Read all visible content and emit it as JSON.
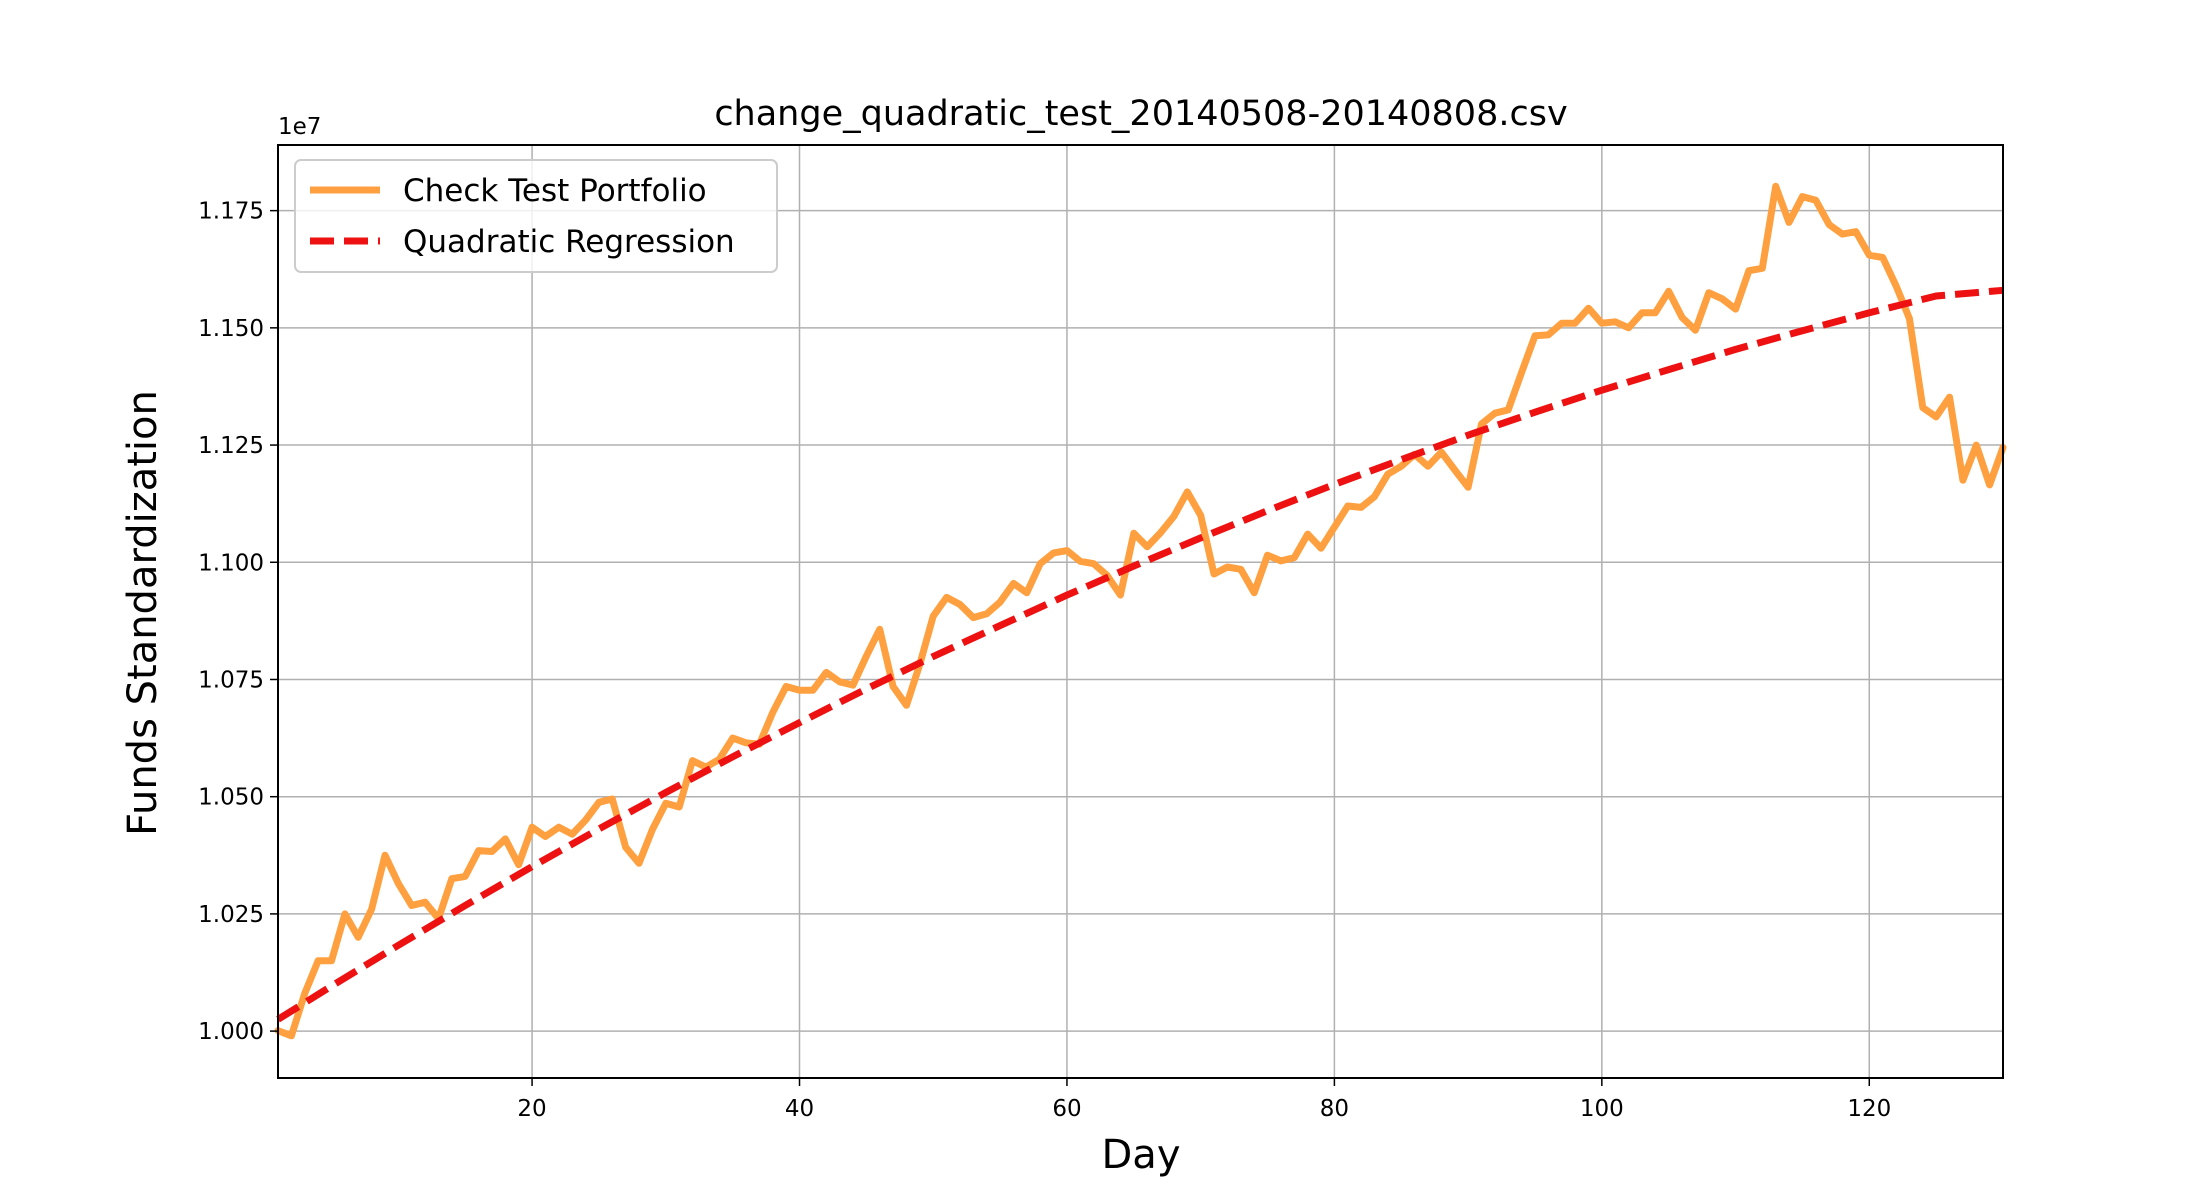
{
  "chart_data": {
    "type": "line",
    "title": "change_quadratic_test_20140508-20140808.csv",
    "xlabel": "Day",
    "ylabel": "Funds Standardization",
    "y_offset_label": "1e7",
    "xlim": [
      1,
      130
    ],
    "ylim": [
      0.99,
      1.189
    ],
    "xticks": [
      20,
      40,
      60,
      80,
      100,
      120
    ],
    "xtick_labels": [
      "20",
      "40",
      "60",
      "80",
      "100",
      "120"
    ],
    "yticks": [
      1.0,
      1.025,
      1.05,
      1.075,
      1.1,
      1.125,
      1.15,
      1.175
    ],
    "ytick_labels": [
      "1.000",
      "1.025",
      "1.050",
      "1.075",
      "1.100",
      "1.125",
      "1.150",
      "1.175"
    ],
    "grid": true,
    "legend_position": "upper-left",
    "series": [
      {
        "name": "Check Test Portfolio",
        "color": "#ffa040",
        "style": "solid",
        "x": [
          1,
          2,
          3,
          4,
          5,
          6,
          7,
          8,
          9,
          10,
          11,
          12,
          13,
          14,
          15,
          16,
          17,
          18,
          19,
          20,
          21,
          22,
          23,
          24,
          25,
          26,
          27,
          28,
          29,
          30,
          31,
          32,
          33,
          34,
          35,
          36,
          37,
          38,
          39,
          40,
          41,
          42,
          43,
          44,
          45,
          46,
          47,
          48,
          49,
          50,
          51,
          52,
          53,
          54,
          55,
          56,
          57,
          58,
          59,
          60,
          61,
          62,
          63,
          64,
          65,
          66,
          67,
          68,
          69,
          70,
          71,
          72,
          73,
          74,
          75,
          76,
          77,
          78,
          79,
          80,
          81,
          82,
          83,
          84,
          85,
          86,
          87,
          88,
          89,
          90,
          91,
          92,
          93,
          94,
          95,
          96,
          97,
          98,
          99,
          100,
          101,
          102,
          103,
          104,
          105,
          106,
          107,
          108,
          109,
          110,
          111,
          112,
          113,
          114,
          115,
          116,
          117,
          118,
          119,
          120,
          121,
          122,
          123,
          124,
          125,
          126,
          127,
          128,
          129,
          130
        ],
        "values": [
          1.0001,
          0.999,
          1.008,
          1.015,
          1.015,
          1.025,
          1.02,
          1.026,
          1.0375,
          1.0315,
          1.0268,
          1.0275,
          1.024,
          1.0325,
          1.033,
          1.0385,
          1.0383,
          1.041,
          1.0355,
          1.0435,
          1.0415,
          1.0435,
          1.042,
          1.045,
          1.0488,
          1.0495,
          1.0392,
          1.0358,
          1.043,
          1.0486,
          1.0478,
          1.0577,
          1.0563,
          1.058,
          1.0625,
          1.0615,
          1.0612,
          1.068,
          1.0735,
          1.0727,
          1.0727,
          1.0765,
          1.0745,
          1.0738,
          1.08,
          1.0857,
          1.0735,
          1.0695,
          1.0783,
          1.0885,
          1.0925,
          1.091,
          1.0882,
          1.089,
          1.0915,
          1.0955,
          1.0935,
          1.0997,
          1.102,
          1.1025,
          1.1002,
          1.0997,
          1.0972,
          1.093,
          1.1062,
          1.1033,
          1.1063,
          1.1098,
          1.115,
          1.11,
          1.0975,
          1.099,
          1.0985,
          1.0935,
          1.1015,
          1.1003,
          1.101,
          1.106,
          1.103,
          1.1075,
          1.112,
          1.1117,
          1.114,
          1.1188,
          1.1205,
          1.123,
          1.1205,
          1.1235,
          1.1197,
          1.116,
          1.1295,
          1.1318,
          1.1325,
          1.1405,
          1.1483,
          1.1485,
          1.151,
          1.151,
          1.1542,
          1.151,
          1.1513,
          1.15,
          1.1532,
          1.1532,
          1.1578,
          1.1522,
          1.1495,
          1.1575,
          1.1562,
          1.154,
          1.1622,
          1.1627,
          1.1802,
          1.1725,
          1.178,
          1.1772,
          1.172,
          1.17,
          1.1705,
          1.1655,
          1.165,
          1.159,
          1.152,
          1.133,
          1.131,
          1.1352,
          1.1175,
          1.125,
          1.1165,
          1.1245
        ]
      },
      {
        "name": "Quadratic Regression",
        "color": "#ee1111",
        "style": "dashed",
        "x": [
          1,
          5,
          10,
          15,
          20,
          25,
          30,
          35,
          40,
          45,
          50,
          55,
          60,
          65,
          70,
          75,
          80,
          85,
          90,
          95,
          100,
          105,
          110,
          115,
          120,
          125,
          130
        ],
        "values": [
          1.0025,
          1.0096,
          1.0183,
          1.0268,
          1.0351,
          1.0431,
          1.0509,
          1.0585,
          1.0658,
          1.073,
          1.0799,
          1.0865,
          1.093,
          1.0992,
          1.1052,
          1.111,
          1.1166,
          1.1219,
          1.1271,
          1.132,
          1.1367,
          1.1411,
          1.1454,
          1.1494,
          1.1532,
          1.1568,
          1.158
        ]
      }
    ]
  }
}
